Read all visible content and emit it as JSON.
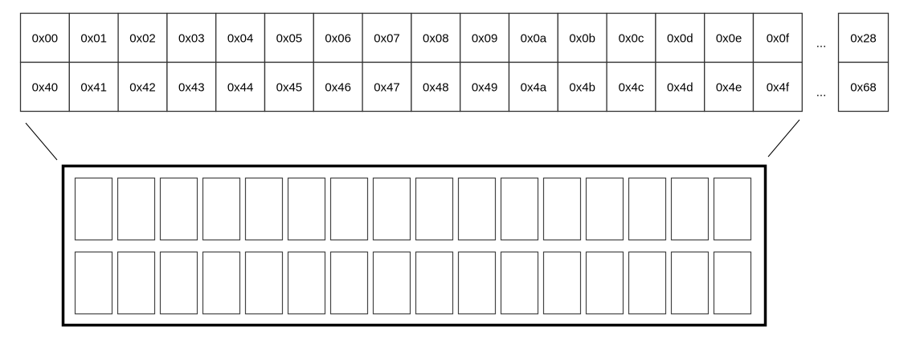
{
  "ddram": {
    "row1": [
      "0x00",
      "0x01",
      "0x02",
      "0x03",
      "0x04",
      "0x05",
      "0x06",
      "0x07",
      "0x08",
      "0x09",
      "0x0a",
      "0x0b",
      "0x0c",
      "0x0d",
      "0x0e",
      "0x0f"
    ],
    "row2": [
      "0x40",
      "0x41",
      "0x42",
      "0x43",
      "0x44",
      "0x45",
      "0x46",
      "0x47",
      "0x48",
      "0x49",
      "0x4a",
      "0x4b",
      "0x4c",
      "0x4d",
      "0x4e",
      "0x4f"
    ],
    "ellipsis": [
      "...",
      "..."
    ],
    "last": [
      "0x28",
      "0x68"
    ]
  },
  "display": {
    "rows": 2,
    "columns": 16
  }
}
